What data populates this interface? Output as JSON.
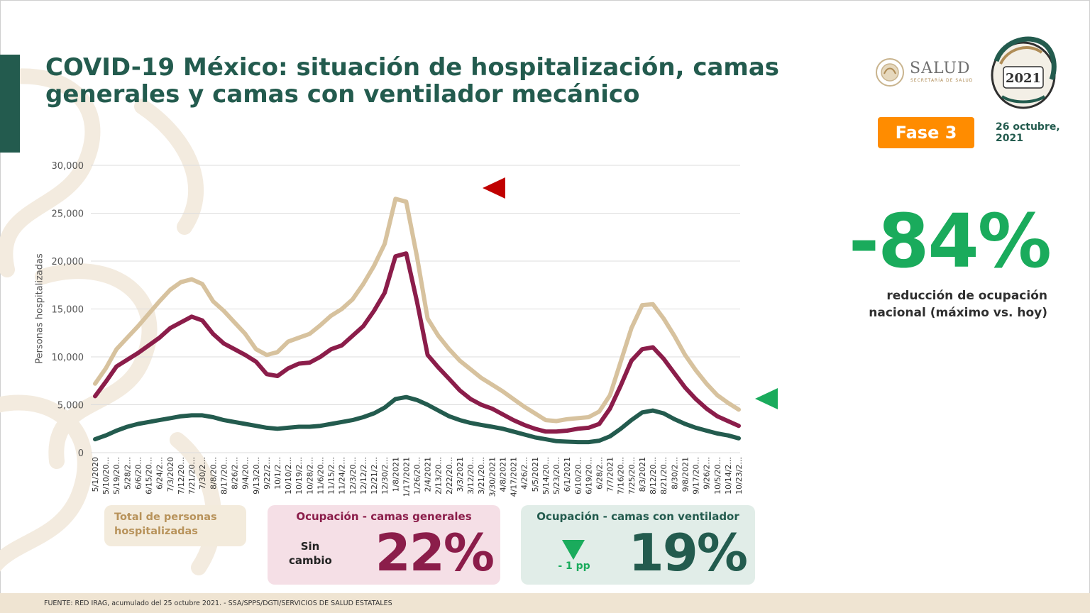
{
  "header": {
    "title": "COVID-19 México: situación de hospitalización, camas generales y camas con ventilador mecánico",
    "logo_salud": "SALUD",
    "logo_salud_sub": "SECRETARÍA DE SALUD",
    "phase_badge": "Fase 3",
    "date": "26 octubre, 2021"
  },
  "kpi": {
    "value": "-84%",
    "description": "reducción de ocupación nacional (máximo vs. hoy)"
  },
  "boxes": {
    "total": {
      "label": "Total de personas hospitalizadas"
    },
    "general": {
      "label": "Ocupación - camas generales",
      "change": "Sin cambio",
      "value": "22%"
    },
    "ventilator": {
      "label": "Ocupación - camas con ventilador",
      "change": "- 1 pp",
      "value": "19%"
    }
  },
  "footer": {
    "source": "FUENTE: RED IRAG, acumulado del 25 octubre 2021. - SSA/SPPS/DGTI/SERVICIOS DE SALUD ESTATALES"
  },
  "colors": {
    "total": "#d7c29e",
    "general": "#8b1d4a",
    "ventilator": "#235b4e",
    "accent_green": "#1aab5c",
    "phase_orange": "#ff8c00",
    "up_marker": "#c00000"
  },
  "chart_data": {
    "type": "line",
    "title": "",
    "xlabel": "",
    "ylabel": "Personas hospitalizadas",
    "ylim": [
      0,
      30000
    ],
    "yticks": [
      "0",
      "5,000",
      "10,000",
      "15,000",
      "20,000",
      "25,000",
      "30,000"
    ],
    "ytick_values": [
      0,
      5000,
      10000,
      15000,
      20000,
      25000,
      30000
    ],
    "grid": true,
    "xtick_labels": [
      "5/1/2020",
      "5/10/20...",
      "5/19/20...",
      "5/28/2...",
      "6/6/20...",
      "6/15/20...",
      "6/24/2...",
      "7/3/2020",
      "7/12/20...",
      "7/21/20...",
      "7/30/2...",
      "8/8/20...",
      "8/17/20...",
      "8/26/2...",
      "9/4/20...",
      "9/13/20...",
      "9/22/2...",
      "10/1/2...",
      "10/10/2...",
      "10/19/2...",
      "10/28/2...",
      "11/6/20...",
      "11/15/2...",
      "11/24/2...",
      "12/3/20...",
      "12/12/2...",
      "12/21/2...",
      "12/30/2...",
      "1/8/2021",
      "1/17/2021",
      "1/26/20...",
      "2/4/2021",
      "2/13/20...",
      "2/22/20...",
      "3/3/2021",
      "3/12/20...",
      "3/21/20...",
      "3/30/2021",
      "4/8/2021",
      "4/17/2021",
      "4/26/2...",
      "5/5/2021",
      "5/14/20...",
      "5/23/20...",
      "6/1/2021",
      "6/10/20...",
      "6/19/20...",
      "6/28/2...",
      "7/7/2021",
      "7/16/20...",
      "7/25/20...",
      "8/3/2021",
      "8/12/20...",
      "8/21/20...",
      "8/30/2...",
      "9/8/2021",
      "9/17/20...",
      "9/26/2...",
      "10/5/20...",
      "10/14/2...",
      "10/23/2..."
    ],
    "series": [
      {
        "key": "total",
        "values": [
          7200,
          8800,
          10800,
          12000,
          13200,
          14500,
          15800,
          17000,
          17800,
          18100,
          17600,
          15800,
          14800,
          13600,
          12400,
          10800,
          10200,
          10500,
          11600,
          12000,
          12400,
          13300,
          14300,
          15000,
          16000,
          17600,
          19500,
          21800,
          26500,
          26200,
          20500,
          14000,
          12200,
          10800,
          9600,
          8700,
          7800,
          7100,
          6400,
          5600,
          4800,
          4100,
          3400,
          3300,
          3500,
          3600,
          3700,
          4300,
          6000,
          9500,
          13000,
          15400,
          15500,
          14000,
          12200,
          10200,
          8600,
          7200,
          6000,
          5200,
          4500
        ]
      },
      {
        "key": "general",
        "values": [
          5900,
          7400,
          9000,
          9700,
          10400,
          11200,
          12000,
          13000,
          13600,
          14200,
          13800,
          12400,
          11400,
          10800,
          10200,
          9500,
          8200,
          8000,
          8800,
          9300,
          9400,
          10000,
          10800,
          11200,
          12200,
          13200,
          14800,
          16700,
          20500,
          20800,
          15800,
          10200,
          8900,
          7700,
          6500,
          5600,
          5000,
          4600,
          4000,
          3400,
          2900,
          2500,
          2200,
          2200,
          2300,
          2500,
          2600,
          3000,
          4600,
          7000,
          9600,
          10800,
          11000,
          9800,
          8300,
          6800,
          5600,
          4600,
          3800,
          3300,
          2800
        ]
      },
      {
        "key": "ventilator",
        "values": [
          1400,
          1800,
          2300,
          2700,
          3000,
          3200,
          3400,
          3600,
          3800,
          3900,
          3900,
          3700,
          3400,
          3200,
          3000,
          2800,
          2600,
          2500,
          2600,
          2700,
          2700,
          2800,
          3000,
          3200,
          3400,
          3700,
          4100,
          4700,
          5600,
          5800,
          5500,
          5000,
          4400,
          3800,
          3400,
          3100,
          2900,
          2700,
          2500,
          2200,
          1900,
          1600,
          1400,
          1200,
          1150,
          1100,
          1100,
          1250,
          1700,
          2500,
          3400,
          4200,
          4400,
          4100,
          3500,
          3000,
          2600,
          2300,
          2000,
          1800,
          1500
        ]
      }
    ]
  }
}
